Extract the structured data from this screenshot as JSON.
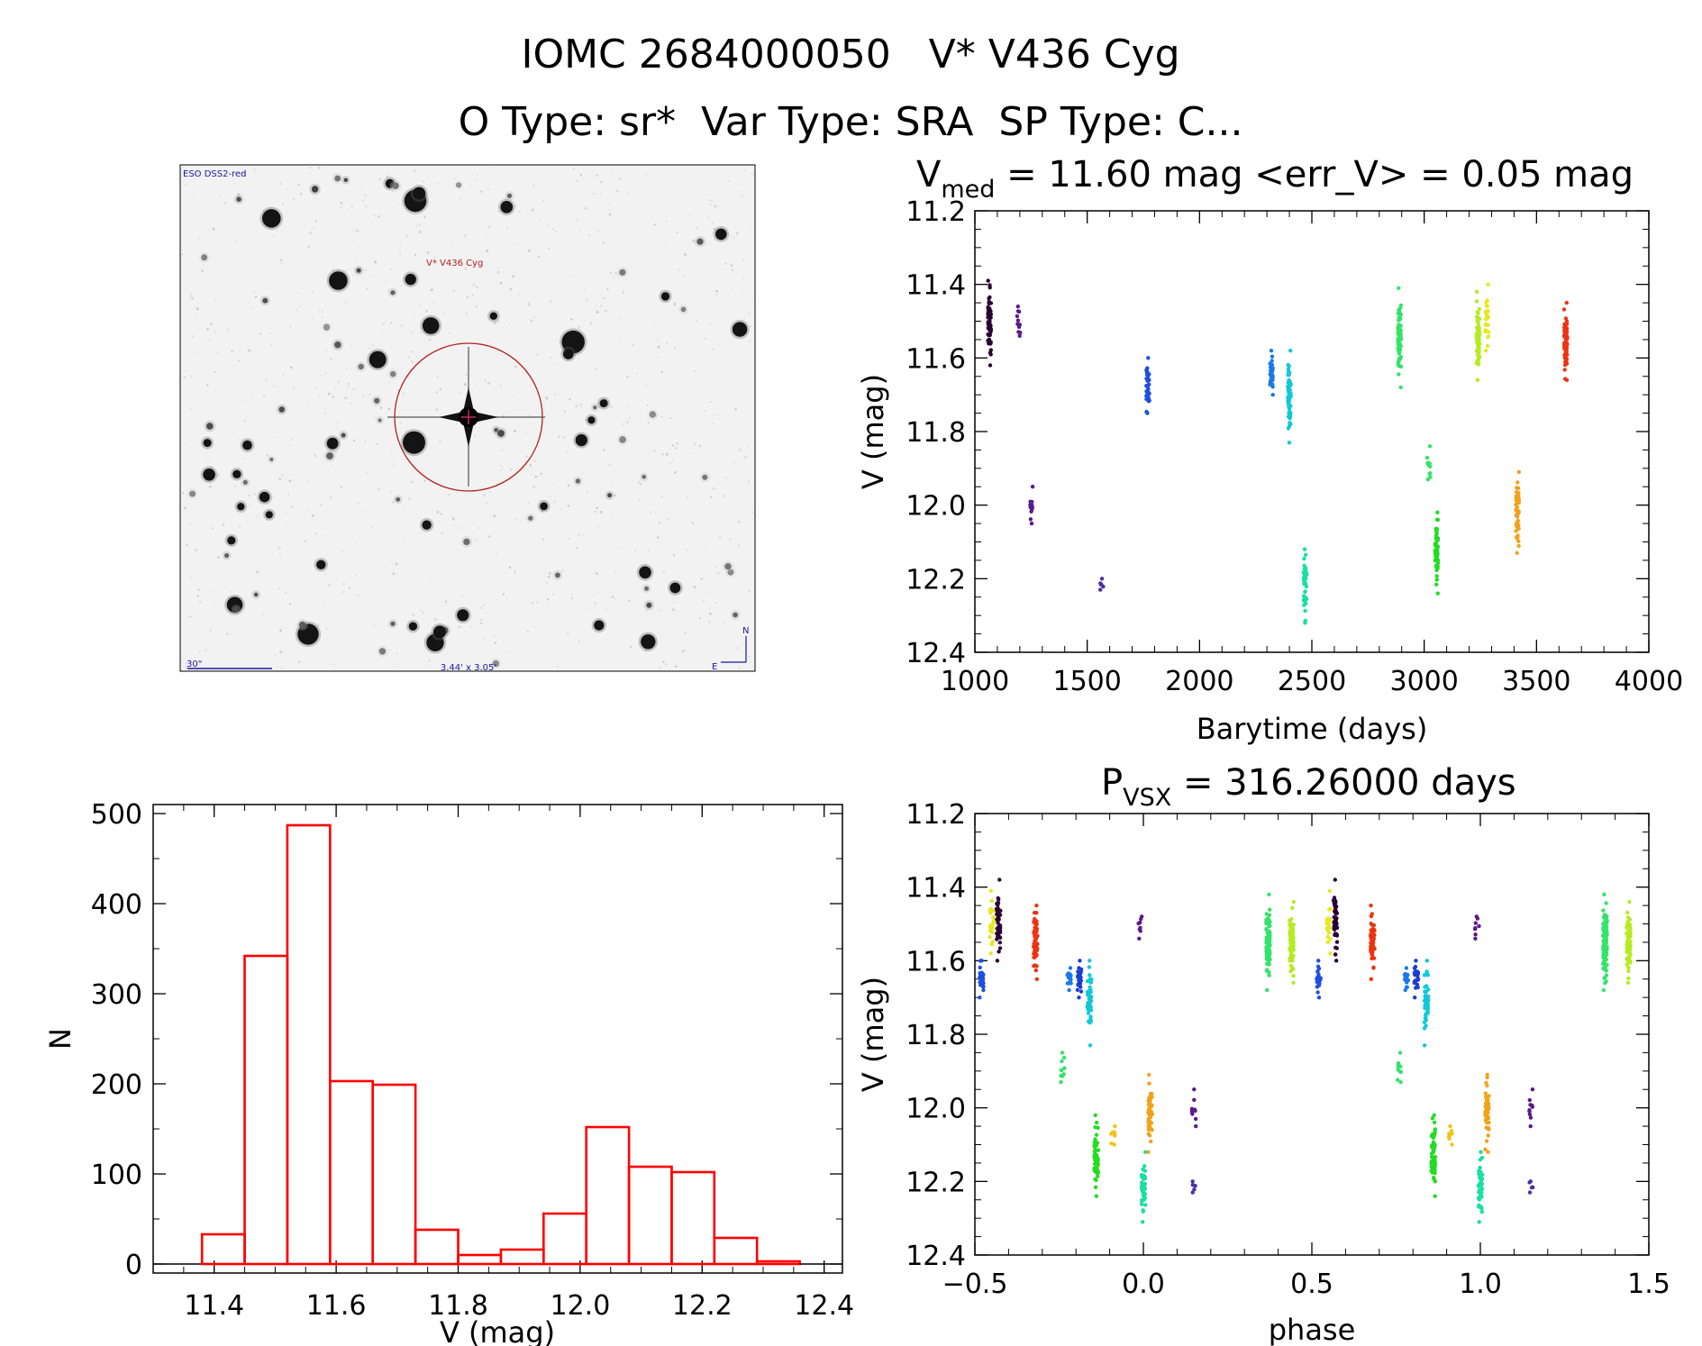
{
  "header": {
    "title": "IOMC 2684000050   V* V436 Cyg",
    "subtitle": "O Type: sr*  Var Type: SRA  SP Type: C..."
  },
  "image_panel": {
    "survey_label": "ESO DSS2-red",
    "target_label": "V* V436 Cyg",
    "scale_label": "30\"",
    "size_label": "3.44' x 3.05'",
    "north_label": "N",
    "east_label": "E"
  },
  "chart_data": [
    {
      "id": "lightcurve",
      "type": "scatter",
      "title_main": "V",
      "title_sub": "med",
      "title_rest": " = 11.60 mag <err_V> = 0.05 mag",
      "xlabel": "Barytime (days)",
      "ylabel": "V (mag)",
      "xlim": [
        1000,
        4000
      ],
      "ylim": [
        12.4,
        11.2
      ],
      "y_inverted": true,
      "xticks": [
        1000,
        1500,
        2000,
        2500,
        3000,
        3500,
        4000
      ],
      "xtick_labels": [
        "1000",
        "1500",
        "2000",
        "2500",
        "3000",
        "3500",
        "4000"
      ],
      "yticks": [
        11.2,
        11.4,
        11.6,
        11.8,
        12.0,
        12.2,
        12.4
      ],
      "ytick_labels": [
        "11.2",
        "11.4",
        "11.6",
        "11.8",
        "12.0",
        "12.2",
        "12.4"
      ],
      "clusters": [
        {
          "t": 1065,
          "ymin": 11.39,
          "ymax": 11.62,
          "color": "#2a0033",
          "n": 70
        },
        {
          "t": 1195,
          "ymin": 11.46,
          "ymax": 11.54,
          "color": "#5a1a8a",
          "n": 12
        },
        {
          "t": 1250,
          "ymin": 11.95,
          "ymax": 12.05,
          "color": "#5a1a8a",
          "n": 12
        },
        {
          "t": 1565,
          "ymin": 12.2,
          "ymax": 12.23,
          "color": "#4b2fa8",
          "n": 6
        },
        {
          "t": 1770,
          "ymin": 11.6,
          "ymax": 11.75,
          "color": "#1f4fe0",
          "n": 40
        },
        {
          "t": 2320,
          "ymin": 11.58,
          "ymax": 11.7,
          "color": "#1a78e8",
          "n": 40
        },
        {
          "t": 2400,
          "ymin": 11.58,
          "ymax": 11.83,
          "color": "#12c8d8",
          "n": 60
        },
        {
          "t": 2470,
          "ymin": 12.12,
          "ymax": 12.32,
          "color": "#18e0a0",
          "n": 50
        },
        {
          "t": 2890,
          "ymin": 11.41,
          "ymax": 11.68,
          "color": "#33e36a",
          "n": 90
        },
        {
          "t": 3020,
          "ymin": 11.84,
          "ymax": 11.93,
          "color": "#33e36a",
          "n": 12
        },
        {
          "t": 3055,
          "ymin": 12.02,
          "ymax": 12.24,
          "color": "#22dd22",
          "n": 60
        },
        {
          "t": 3240,
          "ymin": 11.42,
          "ymax": 11.66,
          "color": "#b4ec22",
          "n": 70
        },
        {
          "t": 3280,
          "ymin": 11.4,
          "ymax": 11.58,
          "color": "#e8e822",
          "n": 25
        },
        {
          "t": 3415,
          "ymin": 11.91,
          "ymax": 12.13,
          "color": "#f2a21a",
          "n": 60
        },
        {
          "t": 3630,
          "ymin": 11.45,
          "ymax": 11.66,
          "color": "#ee3311",
          "n": 70
        }
      ]
    },
    {
      "id": "histogram",
      "type": "bar",
      "xlabel": "V (mag)",
      "ylabel": "N",
      "xlim": [
        11.3,
        12.43
      ],
      "ylim": [
        -10,
        510
      ],
      "bar_color": "#ff0000",
      "bin_width": 0.07,
      "bin_starts": [
        11.38,
        11.45,
        11.52,
        11.59,
        11.66,
        11.73,
        11.8,
        11.87,
        11.94,
        12.01,
        12.08,
        12.15,
        12.22,
        12.29
      ],
      "values": [
        33,
        342,
        487,
        203,
        199,
        38,
        10,
        16,
        56,
        152,
        108,
        102,
        29,
        3
      ],
      "xticks": [
        11.4,
        11.6,
        11.8,
        12.0,
        12.2,
        12.4
      ],
      "xtick_labels": [
        "11.4",
        "11.6",
        "11.8",
        "12.0",
        "12.2",
        "12.4"
      ],
      "yticks": [
        0,
        100,
        200,
        300,
        400,
        500
      ],
      "ytick_labels": [
        "0",
        "100",
        "200",
        "300",
        "400",
        "500"
      ]
    },
    {
      "id": "phased",
      "type": "scatter",
      "title_main": "P",
      "title_sub": "VSX",
      "title_rest": " = 316.26000 days",
      "xlabel": "phase",
      "ylabel": "V (mag)",
      "xlim": [
        -0.5,
        1.5
      ],
      "ylim": [
        12.4,
        11.2
      ],
      "y_inverted": true,
      "xticks": [
        -0.5,
        0.0,
        0.5,
        1.0,
        1.5
      ],
      "xtick_labels": [
        "−0.5",
        "0.0",
        "0.5",
        "1.0",
        "1.5"
      ],
      "yticks": [
        11.2,
        11.4,
        11.6,
        11.8,
        12.0,
        12.2,
        12.4
      ],
      "ytick_labels": [
        "11.2",
        "11.4",
        "11.6",
        "11.8",
        "12.0",
        "12.2",
        "12.4"
      ],
      "period": 316.26,
      "clusters": [
        {
          "p": -0.43,
          "ymin": 11.38,
          "ymax": 11.6,
          "color": "#2a0033",
          "n": 50
        },
        {
          "p": -0.45,
          "ymin": 11.41,
          "ymax": 11.58,
          "color": "#e8e822",
          "n": 25
        },
        {
          "p": -0.48,
          "ymin": 11.6,
          "ymax": 11.7,
          "color": "#1f4fe0",
          "n": 30
        },
        {
          "p": -0.32,
          "ymin": 11.45,
          "ymax": 11.65,
          "color": "#ee3311",
          "n": 60
        },
        {
          "p": -0.24,
          "ymin": 11.85,
          "ymax": 11.93,
          "color": "#33e36a",
          "n": 10
        },
        {
          "p": -0.22,
          "ymin": 11.62,
          "ymax": 11.68,
          "color": "#1a78e8",
          "n": 20
        },
        {
          "p": -0.19,
          "ymin": 11.6,
          "ymax": 11.7,
          "color": "#1a3fd0",
          "n": 25
        },
        {
          "p": -0.16,
          "ymin": 11.6,
          "ymax": 11.83,
          "color": "#12c8d8",
          "n": 45
        },
        {
          "p": -0.14,
          "ymin": 12.02,
          "ymax": 12.24,
          "color": "#22dd22",
          "n": 60
        },
        {
          "p": -0.09,
          "ymin": 12.05,
          "ymax": 12.1,
          "color": "#f2c21a",
          "n": 8
        },
        {
          "p": -0.01,
          "ymin": 11.48,
          "ymax": 11.54,
          "color": "#5a1a8a",
          "n": 8
        },
        {
          "p": 0.0,
          "ymin": 12.12,
          "ymax": 12.31,
          "color": "#18e0a0",
          "n": 45
        },
        {
          "p": 0.02,
          "ymin": 11.91,
          "ymax": 12.12,
          "color": "#f2a21a",
          "n": 55
        },
        {
          "p": 0.15,
          "ymin": 11.95,
          "ymax": 12.05,
          "color": "#5a1a8a",
          "n": 10
        },
        {
          "p": 0.15,
          "ymin": 12.2,
          "ymax": 12.23,
          "color": "#4b2fa8",
          "n": 6
        },
        {
          "p": 0.37,
          "ymin": 11.42,
          "ymax": 11.68,
          "color": "#33e36a",
          "n": 100
        },
        {
          "p": 0.44,
          "ymin": 11.44,
          "ymax": 11.66,
          "color": "#b4ec22",
          "n": 80
        }
      ]
    }
  ]
}
